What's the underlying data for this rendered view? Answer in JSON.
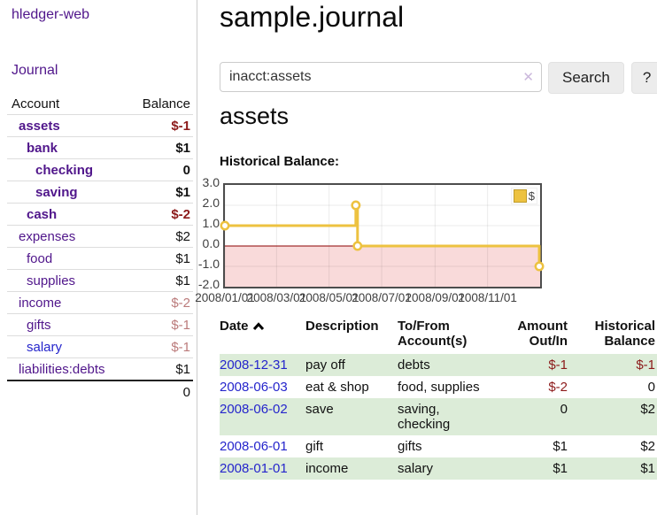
{
  "app": {
    "brand": "hledger-web",
    "nav": {
      "journal": "Journal"
    }
  },
  "colors": {
    "link_purple": "#50168b",
    "link_blue": "#2525cc",
    "negative_strong": "#8c1a1a",
    "negative_faded": "#bb7b7b",
    "row_green": "#dcecd8",
    "divider": "#cccccc"
  },
  "sidebar": {
    "account_header": "Account",
    "balance_header": "Balance",
    "accounts": [
      {
        "name": "assets",
        "balance": "$-1",
        "level": 1,
        "bold": true,
        "balance_style": "negative-strong"
      },
      {
        "name": "bank",
        "balance": "$1",
        "level": 2,
        "bold": true,
        "balance_style": "normal"
      },
      {
        "name": "checking",
        "balance": "0",
        "level": 3,
        "bold": true,
        "balance_style": "normal"
      },
      {
        "name": "saving",
        "balance": "$1",
        "level": 3,
        "bold": true,
        "balance_style": "normal"
      },
      {
        "name": "cash",
        "balance": "$-2",
        "level": 2,
        "bold": true,
        "balance_style": "negative-strong"
      },
      {
        "name": "expenses",
        "balance": "$2",
        "level": 1,
        "bold": false,
        "balance_style": "normal"
      },
      {
        "name": "food",
        "balance": "$1",
        "level": 2,
        "bold": false,
        "balance_style": "normal"
      },
      {
        "name": "supplies",
        "balance": "$1",
        "level": 2,
        "bold": false,
        "balance_style": "normal"
      },
      {
        "name": "income",
        "balance": "$-2",
        "level": 1,
        "bold": false,
        "balance_style": "negative-faded"
      },
      {
        "name": "gifts",
        "balance": "$-1",
        "level": 2,
        "bold": false,
        "balance_style": "negative-faded"
      },
      {
        "name": "salary",
        "balance": "$-1",
        "level": 2,
        "bold": false,
        "balance_style": "negative-faded",
        "link_color": "blue"
      },
      {
        "name": "liabilities:debts",
        "balance": "$1",
        "level": 1,
        "bold": false,
        "balance_style": "normal"
      }
    ],
    "total": "0"
  },
  "main": {
    "title": "sample.journal",
    "search": {
      "value": "inacct:assets",
      "clear_icon": "✕",
      "button_label": "Search",
      "help_label": "?"
    },
    "account_heading": "assets",
    "chart_heading": "Historical Balance:"
  },
  "register": {
    "headers": {
      "date": "Date",
      "description": "Description",
      "accounts": "To/From Account(s)",
      "amount": "Amount Out/In",
      "balance": "Historical Balance"
    },
    "sort": {
      "column": "date",
      "direction": "ascending"
    },
    "rows": [
      {
        "date": "2008-12-31",
        "description": "pay off",
        "accounts": "debts",
        "amount": "$-1",
        "balance": "$-1",
        "amount_negative": true,
        "balance_negative": true,
        "shaded": true
      },
      {
        "date": "2008-06-03",
        "description": "eat & shop",
        "accounts": "food, supplies",
        "amount": "$-2",
        "balance": "0",
        "amount_negative": true,
        "balance_negative": false,
        "shaded": false
      },
      {
        "date": "2008-06-02",
        "description": "save",
        "accounts": "saving, checking",
        "amount": "0",
        "balance": "$2",
        "amount_negative": false,
        "balance_negative": false,
        "shaded": true
      },
      {
        "date": "2008-06-01",
        "description": "gift",
        "accounts": "gifts",
        "amount": "$1",
        "balance": "$2",
        "amount_negative": false,
        "balance_negative": false,
        "shaded": false
      },
      {
        "date": "2008-01-01",
        "description": "income",
        "accounts": "salary",
        "amount": "$1",
        "balance": "$1",
        "amount_negative": false,
        "balance_negative": false,
        "shaded": true
      }
    ]
  },
  "chart_data": {
    "type": "line",
    "step": true,
    "title": "Historical Balance:",
    "xlabel": "",
    "ylabel": "",
    "ylim": [
      -2,
      3
    ],
    "xlim_days": [
      0,
      366
    ],
    "grid": true,
    "legend_position": "top-right",
    "negative_region": true,
    "colors": {
      "series": "#EDC240",
      "negative_fill": "#f9dada",
      "zero_line": "#8b0000",
      "gridline": "rgba(0,0,0,0.08)",
      "border": "#4d4d4d"
    },
    "yticks": [
      "3.0",
      "2.0",
      "1.0",
      "0.0",
      "-1.0",
      "-2.0"
    ],
    "xticks": [
      {
        "label": "2008/01/01",
        "day": 0
      },
      {
        "label": "2008/03/01",
        "day": 60
      },
      {
        "label": "2008/05/01",
        "day": 121
      },
      {
        "label": "2008/07/01",
        "day": 182
      },
      {
        "label": "2008/09/01",
        "day": 244
      },
      {
        "label": "2008/11/01",
        "day": 305
      }
    ],
    "series": [
      {
        "name": "$",
        "color": "#EDC240",
        "points": [
          {
            "date": "2008-01-01",
            "day": 0,
            "value": 1
          },
          {
            "date": "2008-06-01",
            "day": 152,
            "value": 2
          },
          {
            "date": "2008-06-03",
            "day": 154,
            "value": 0
          },
          {
            "date": "2008-12-31",
            "day": 365,
            "value": -1
          }
        ]
      }
    ]
  }
}
